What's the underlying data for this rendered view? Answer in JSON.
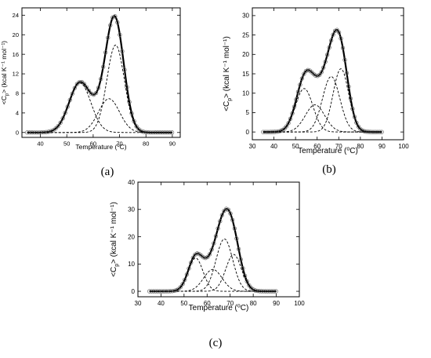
{
  "chart_data": [
    {
      "type": "line",
      "panel_label": "(a)",
      "xlabel": "Temperature (°C)",
      "ylabel": "<C_p> (kcal K⁻¹ mol⁻¹)",
      "xlim": [
        33,
        93
      ],
      "ylim": [
        -1,
        25.5
      ],
      "x_ticks": [
        40,
        50,
        60,
        70,
        80,
        90
      ],
      "y_ticks": [
        0,
        4,
        8,
        12,
        16,
        20,
        24
      ],
      "grid": false,
      "peaks": [
        {
          "center": 55.0,
          "height": 10.2,
          "width": 4.1
        },
        {
          "center": 66.0,
          "height": 6.9,
          "width": 4.0
        },
        {
          "center": 68.5,
          "height": 17.9,
          "width": 3.3
        }
      ],
      "series": [
        {
          "values_from": "sum_of_peaks",
          "style": "solid",
          "markers": "open-circle"
        },
        {
          "values_from": "peak:0",
          "style": "dashed"
        },
        {
          "values_from": "peak:1",
          "style": "dashed"
        },
        {
          "values_from": "peak:2",
          "style": "dashed"
        }
      ]
    },
    {
      "type": "line",
      "panel_label": "(b)",
      "xlabel": "Temperature (°C)",
      "ylabel": "<C_p> (kcal K⁻¹ mol⁻¹)",
      "xlim": [
        30,
        100
      ],
      "ylim": [
        -2,
        32
      ],
      "x_ticks": [
        30,
        40,
        50,
        60,
        70,
        80,
        90,
        100
      ],
      "y_ticks": [
        0,
        5,
        10,
        15,
        20,
        25,
        30
      ],
      "grid": false,
      "peaks": [
        {
          "center": 54.0,
          "height": 11.2,
          "width": 4.0
        },
        {
          "center": 59.0,
          "height": 7.0,
          "width": 4.5
        },
        {
          "center": 66.5,
          "height": 14.3,
          "width": 4.0
        },
        {
          "center": 71.0,
          "height": 16.3,
          "width": 3.6
        }
      ],
      "series": [
        {
          "values_from": "sum_of_peaks",
          "style": "solid",
          "markers": "open-circle"
        },
        {
          "values_from": "peak:0",
          "style": "dashed"
        },
        {
          "values_from": "peak:1",
          "style": "dashed"
        },
        {
          "values_from": "peak:2",
          "style": "dashed"
        },
        {
          "values_from": "peak:3",
          "style": "dashed"
        }
      ]
    },
    {
      "type": "line",
      "panel_label": "(c)",
      "xlabel": "Temperature (°C)",
      "ylabel": "<C_p> (kcal K⁻¹ mol⁻¹)",
      "xlim": [
        30,
        100
      ],
      "ylim": [
        -2,
        40
      ],
      "x_ticks": [
        30,
        40,
        50,
        60,
        70,
        80,
        90,
        100
      ],
      "y_ticks": [
        0,
        10,
        20,
        30,
        40
      ],
      "grid": false,
      "peaks": [
        {
          "center": 55.0,
          "height": 12.2,
          "width": 3.2
        },
        {
          "center": 62.5,
          "height": 8.0,
          "width": 4.0
        },
        {
          "center": 67.5,
          "height": 19.2,
          "width": 3.6
        },
        {
          "center": 71.5,
          "height": 13.5,
          "width": 3.4
        }
      ],
      "series": [
        {
          "values_from": "sum_of_peaks",
          "style": "solid",
          "markers": "open-circle"
        },
        {
          "values_from": "peak:0",
          "style": "dashed"
        },
        {
          "values_from": "peak:1",
          "style": "dashed"
        },
        {
          "values_from": "peak:2",
          "style": "dashed"
        },
        {
          "values_from": "peak:3",
          "style": "dashed"
        }
      ]
    }
  ]
}
